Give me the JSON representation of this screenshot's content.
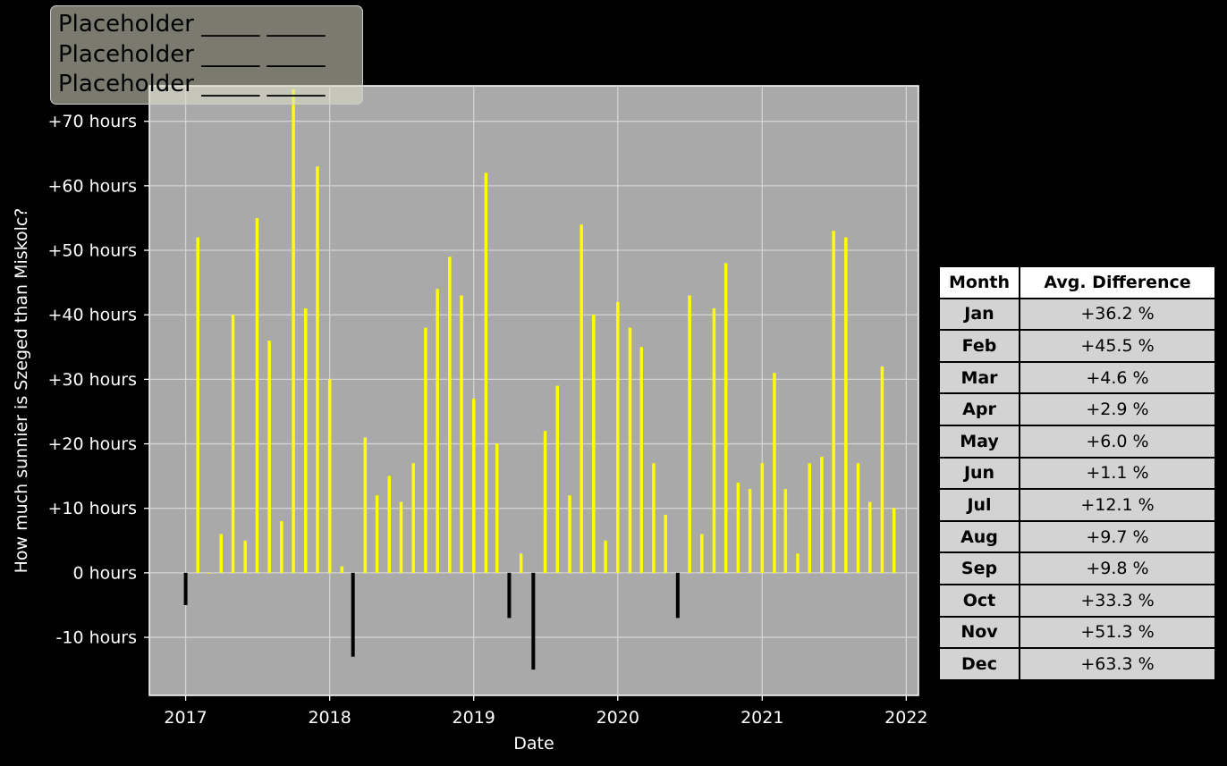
{
  "chart_data": {
    "type": "bar",
    "xlabel": "Date",
    "ylabel": "How much sunnier is Szeged than Miskolc?",
    "xlim": [
      "2016-10-01",
      "2022-02-01"
    ],
    "ylim": [
      -19,
      75.5
    ],
    "x_ticks": [
      "2017",
      "2018",
      "2019",
      "2020",
      "2021",
      "2022"
    ],
    "y_ticks": [
      {
        "value": 70,
        "label": "+70 hours"
      },
      {
        "value": 60,
        "label": "+60 hours"
      },
      {
        "value": 50,
        "label": "+50 hours"
      },
      {
        "value": 40,
        "label": "+40 hours"
      },
      {
        "value": 30,
        "label": "+30 hours"
      },
      {
        "value": 20,
        "label": "+20 hours"
      },
      {
        "value": 10,
        "label": "+10 hours"
      },
      {
        "value": 0,
        "label": "0 hours"
      },
      {
        "value": -10,
        "label": "-10 hours"
      }
    ],
    "grid": true,
    "colors": {
      "positive": "#ffff00",
      "negative": "#000000",
      "plot_bg": "#a9a9a9",
      "grid": "#d3d3d3"
    },
    "series": [
      {
        "values": [
          [
            "2017-01",
            -5
          ],
          [
            "2017-02",
            52
          ],
          [
            "2017-03",
            0
          ],
          [
            "2017-04",
            6
          ],
          [
            "2017-05",
            40
          ],
          [
            "2017-06",
            5
          ],
          [
            "2017-07",
            55
          ],
          [
            "2017-08",
            36
          ],
          [
            "2017-09",
            8
          ],
          [
            "2017-10",
            75
          ],
          [
            "2017-11",
            41
          ],
          [
            "2017-12",
            63
          ],
          [
            "2018-01",
            30
          ],
          [
            "2018-02",
            1
          ],
          [
            "2018-03",
            -13
          ],
          [
            "2018-04",
            21
          ],
          [
            "2018-05",
            12
          ],
          [
            "2018-06",
            15
          ],
          [
            "2018-07",
            11
          ],
          [
            "2018-08",
            17
          ],
          [
            "2018-09",
            38
          ],
          [
            "2018-10",
            44
          ],
          [
            "2018-11",
            49
          ],
          [
            "2018-12",
            43
          ],
          [
            "2019-01",
            27
          ],
          [
            "2019-02",
            62
          ],
          [
            "2019-03",
            20
          ],
          [
            "2019-04",
            -7
          ],
          [
            "2019-05",
            3
          ],
          [
            "2019-06",
            -15
          ],
          [
            "2019-07",
            22
          ],
          [
            "2019-08",
            29
          ],
          [
            "2019-09",
            12
          ],
          [
            "2019-10",
            54
          ],
          [
            "2019-11",
            40
          ],
          [
            "2019-12",
            5
          ],
          [
            "2020-01",
            42
          ],
          [
            "2020-02",
            38
          ],
          [
            "2020-03",
            35
          ],
          [
            "2020-04",
            17
          ],
          [
            "2020-05",
            9
          ],
          [
            "2020-06",
            -7
          ],
          [
            "2020-07",
            43
          ],
          [
            "2020-08",
            6
          ],
          [
            "2020-09",
            41
          ],
          [
            "2020-10",
            48
          ],
          [
            "2020-11",
            14
          ],
          [
            "2020-12",
            13
          ],
          [
            "2021-01",
            17
          ],
          [
            "2021-02",
            31
          ],
          [
            "2021-03",
            13
          ],
          [
            "2021-04",
            3
          ],
          [
            "2021-05",
            17
          ],
          [
            "2021-06",
            18
          ],
          [
            "2021-07",
            53
          ],
          [
            "2021-08",
            52
          ],
          [
            "2021-09",
            17
          ],
          [
            "2021-10",
            11
          ],
          [
            "2021-11",
            32
          ],
          [
            "2021-12",
            10
          ]
        ]
      }
    ]
  },
  "legend": {
    "entries": [
      "Placeholder _____ _____",
      "Placeholder _____ _____",
      "Placeholder _____ _____"
    ]
  },
  "table": {
    "headers": [
      "Month",
      "Avg. Difference"
    ],
    "rows": [
      [
        "Jan",
        "+36.2 %"
      ],
      [
        "Feb",
        "+45.5 %"
      ],
      [
        "Mar",
        "+4.6 %"
      ],
      [
        "Apr",
        "+2.9 %"
      ],
      [
        "May",
        "+6.0 %"
      ],
      [
        "Jun",
        "+1.1 %"
      ],
      [
        "Jul",
        "+12.1 %"
      ],
      [
        "Aug",
        "+9.7 %"
      ],
      [
        "Sep",
        "+9.8 %"
      ],
      [
        "Oct",
        "+33.3 %"
      ],
      [
        "Nov",
        "+51.3 %"
      ],
      [
        "Dec",
        "+63.3 %"
      ]
    ]
  }
}
